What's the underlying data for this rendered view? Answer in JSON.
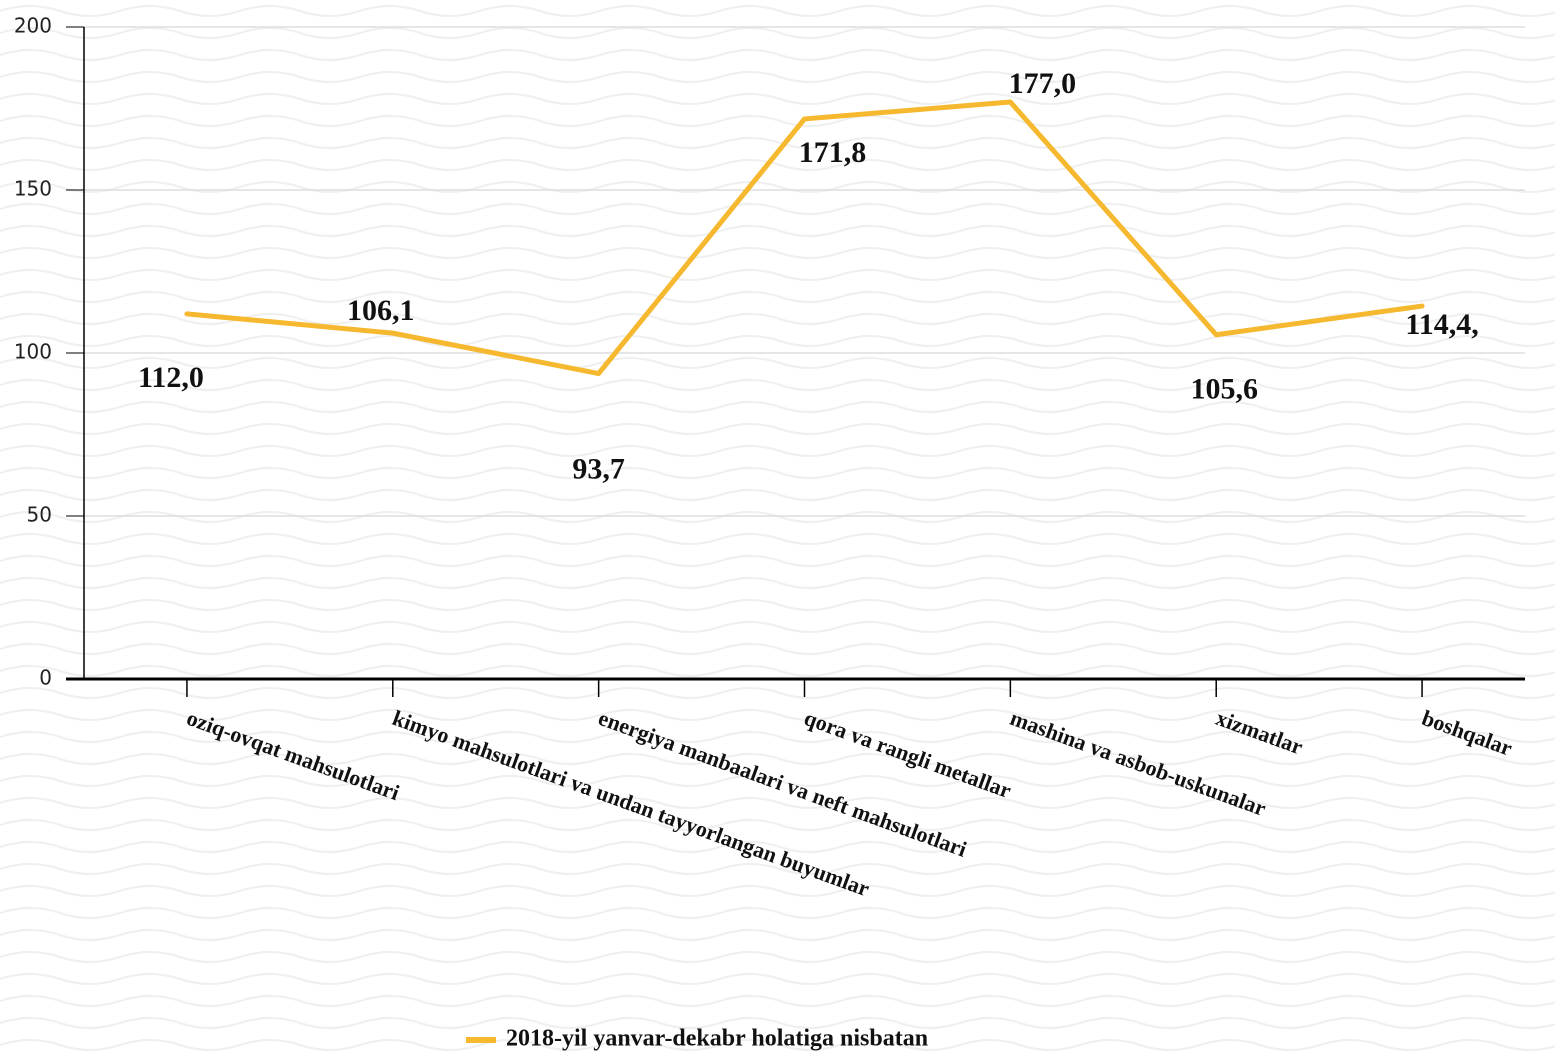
{
  "chart_data": {
    "type": "line",
    "categories": [
      "oziq-ovqat mahsulotlari",
      "kimyo mahsulotlari va undan tayyorlangan buyumlar",
      "energiya manbaalari va neft mahsulotlari",
      "qora va rangli metallar",
      "mashina va asbob-uskunalar",
      "xizmatlar",
      "boshqalar"
    ],
    "series": [
      {
        "name": "2018-yil yanvar-dekabr holatiga nisbatan",
        "color": "#f5b82e",
        "values": [
          112.0,
          106.1,
          93.7,
          171.8,
          177.0,
          105.6,
          114.4
        ],
        "value_labels": [
          "112,0",
          "106,1",
          "93,7",
          "171,8",
          "177,0",
          "105,6",
          "114,4,"
        ]
      }
    ],
    "ylim": [
      0,
      200
    ],
    "yticks": [
      0,
      50,
      100,
      150,
      200
    ],
    "grid": true,
    "legend": "bottom"
  }
}
